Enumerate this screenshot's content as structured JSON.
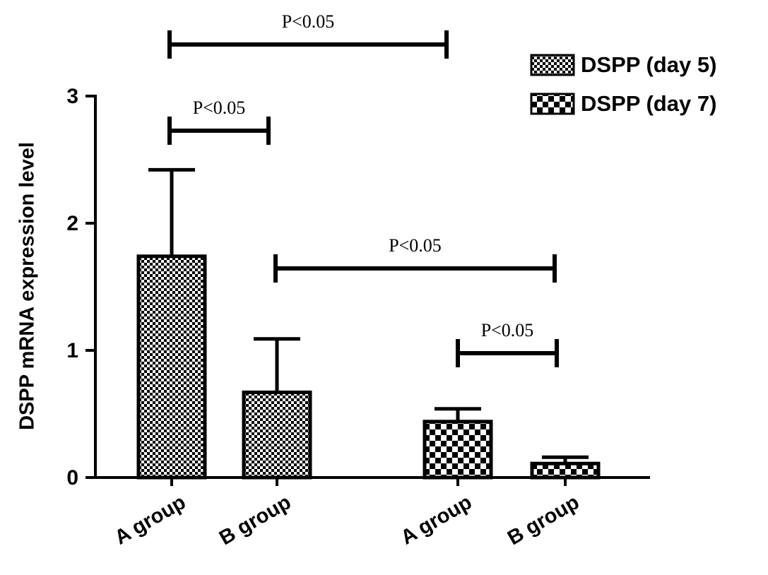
{
  "chart_data": {
    "type": "bar",
    "y_label": "DSPP mRNA expression level",
    "categories": [
      "A group",
      "B group",
      "A group",
      "B group"
    ],
    "series": [
      {
        "name": "DSPP (day 5)",
        "color": "#000000",
        "pattern": "fine-check",
        "values": [
          1.74,
          0.67,
          null,
          null
        ],
        "errors": [
          0.68,
          0.42,
          null,
          null
        ]
      },
      {
        "name": "DSPP (day 7)",
        "color": "#000000",
        "pattern": "coarse-check",
        "values": [
          null,
          null,
          0.44,
          0.11
        ],
        "errors": [
          null,
          null,
          0.1,
          0.05
        ]
      }
    ],
    "ylim": [
      0,
      3
    ],
    "yticks": [
      0,
      1,
      2,
      3
    ],
    "annotations": [
      "P<0.05",
      "P<0.05",
      "P<0.05",
      "P<0.05"
    ],
    "legend": "top-right"
  }
}
